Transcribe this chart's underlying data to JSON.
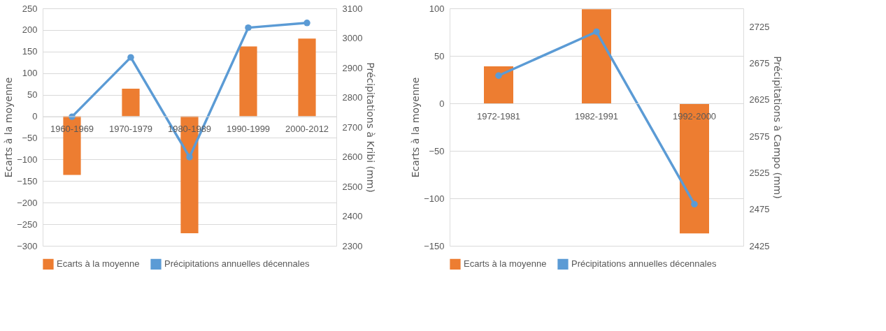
{
  "chart_data": [
    {
      "type": "bar",
      "categories": [
        "1960-1969",
        "1970-1979",
        "1980-1989",
        "1990-1999",
        "2000-2012"
      ],
      "ylabel": "Ecarts à la moyenne",
      "y2label": "Précipitations à Kribi (mm)",
      "ylim": [
        -300,
        250
      ],
      "yticks": [
        -300,
        -250,
        -200,
        -150,
        -100,
        -50,
        0,
        50,
        100,
        150,
        200,
        250
      ],
      "y2lim": [
        2300,
        3100
      ],
      "y2ticks": [
        2300,
        2400,
        2500,
        2600,
        2700,
        2800,
        2900,
        3000,
        3100
      ],
      "grid": "y",
      "legend": "bottom",
      "marker": "circle",
      "series": [
        {
          "name": "Ecarts à la moyenne",
          "color": "#ed7d31",
          "values": [
            -136,
            64,
            -271,
            162,
            180
          ]
        },
        {
          "name": "Précipitations annuelles décennales",
          "type": "line",
          "axis": "y2",
          "color": "#5b9bd5",
          "values": [
            2735,
            2935,
            2599,
            3035,
            3051
          ]
        }
      ]
    },
    {
      "type": "bar",
      "categories": [
        "1972-1981",
        "1982-1991",
        "1992-2000"
      ],
      "ylabel": "Ecarts à la  moyenne",
      "y2label": "Précipitations à Campo (mm)",
      "ylim": [
        -150,
        100
      ],
      "yticks": [
        -150,
        -100,
        -50,
        0,
        50,
        100
      ],
      "y2lim": [
        2425,
        2750
      ],
      "y2ticks": [
        2425,
        2475,
        2525,
        2575,
        2625,
        2675,
        2725
      ],
      "grid": "y",
      "legend": "bottom",
      "marker": "circle",
      "series": [
        {
          "name": "Ecarts à la moyenne",
          "color": "#ed7d31",
          "values": [
            39,
            99,
            -137
          ]
        },
        {
          "name": "Précipitations annuelles décennales",
          "type": "line",
          "axis": "y2",
          "color": "#5b9bd5",
          "values": [
            2658,
            2718,
            2482
          ]
        }
      ]
    }
  ]
}
